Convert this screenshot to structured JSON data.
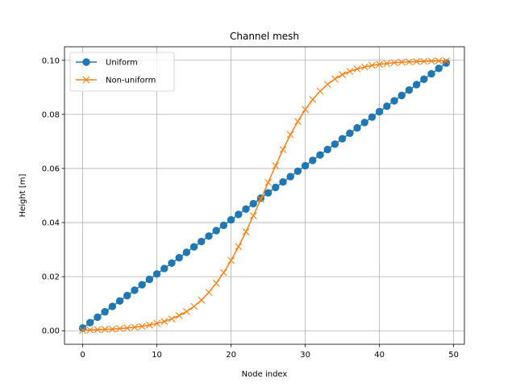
{
  "chart_data": {
    "type": "line",
    "title": "Channel mesh",
    "xlabel": "Node index",
    "ylabel": "Height [m]",
    "xlim": [
      -2.45,
      51.45
    ],
    "ylim": [
      -0.005,
      0.105
    ],
    "xticks": [
      0,
      10,
      20,
      30,
      40,
      50
    ],
    "yticks": [
      0.0,
      0.02,
      0.04,
      0.06,
      0.08,
      0.1
    ],
    "xtick_labels": [
      "0",
      "10",
      "20",
      "30",
      "40",
      "50"
    ],
    "ytick_labels": [
      "0.00",
      "0.02",
      "0.04",
      "0.06",
      "0.08",
      "0.10"
    ],
    "grid": true,
    "legend_position": "top-left",
    "x": [
      0,
      1,
      2,
      3,
      4,
      5,
      6,
      7,
      8,
      9,
      10,
      11,
      12,
      13,
      14,
      15,
      16,
      17,
      18,
      19,
      20,
      21,
      22,
      23,
      24,
      25,
      26,
      27,
      28,
      29,
      30,
      31,
      32,
      33,
      34,
      35,
      36,
      37,
      38,
      39,
      40,
      41,
      42,
      43,
      44,
      45,
      46,
      47,
      48,
      49
    ],
    "series": [
      {
        "name": "Uniform",
        "color": "#1f77b4",
        "marker": "circle",
        "values": [
          0.001,
          0.003,
          0.005,
          0.007,
          0.009,
          0.011,
          0.013,
          0.015,
          0.017,
          0.019,
          0.021,
          0.023,
          0.025,
          0.027,
          0.029,
          0.031,
          0.033,
          0.035,
          0.037,
          0.039,
          0.041,
          0.043,
          0.045,
          0.047,
          0.049,
          0.051,
          0.053,
          0.055,
          0.057,
          0.059,
          0.061,
          0.063,
          0.065,
          0.067,
          0.069,
          0.071,
          0.073,
          0.075,
          0.077,
          0.079,
          0.081,
          0.083,
          0.085,
          0.087,
          0.089,
          0.091,
          0.093,
          0.095,
          0.097,
          0.099
        ]
      },
      {
        "name": "Non-uniform",
        "color": "#ff7f0e",
        "marker": "x",
        "values": [
          0.0002,
          0.0003,
          0.0004,
          0.0005,
          0.0006,
          0.0008,
          0.001,
          0.0013,
          0.0016,
          0.0021,
          0.0027,
          0.0034,
          0.0044,
          0.0056,
          0.0071,
          0.009,
          0.0113,
          0.0142,
          0.0176,
          0.0215,
          0.026,
          0.0311,
          0.0366,
          0.0425,
          0.0486,
          0.0548,
          0.061,
          0.067,
          0.0725,
          0.0774,
          0.0818,
          0.0855,
          0.0886,
          0.0911,
          0.0931,
          0.0947,
          0.0959,
          0.0968,
          0.0975,
          0.0981,
          0.0985,
          0.0988,
          0.0991,
          0.0993,
          0.0994,
          0.0995,
          0.0996,
          0.0997,
          0.0998,
          0.0998
        ]
      }
    ]
  }
}
